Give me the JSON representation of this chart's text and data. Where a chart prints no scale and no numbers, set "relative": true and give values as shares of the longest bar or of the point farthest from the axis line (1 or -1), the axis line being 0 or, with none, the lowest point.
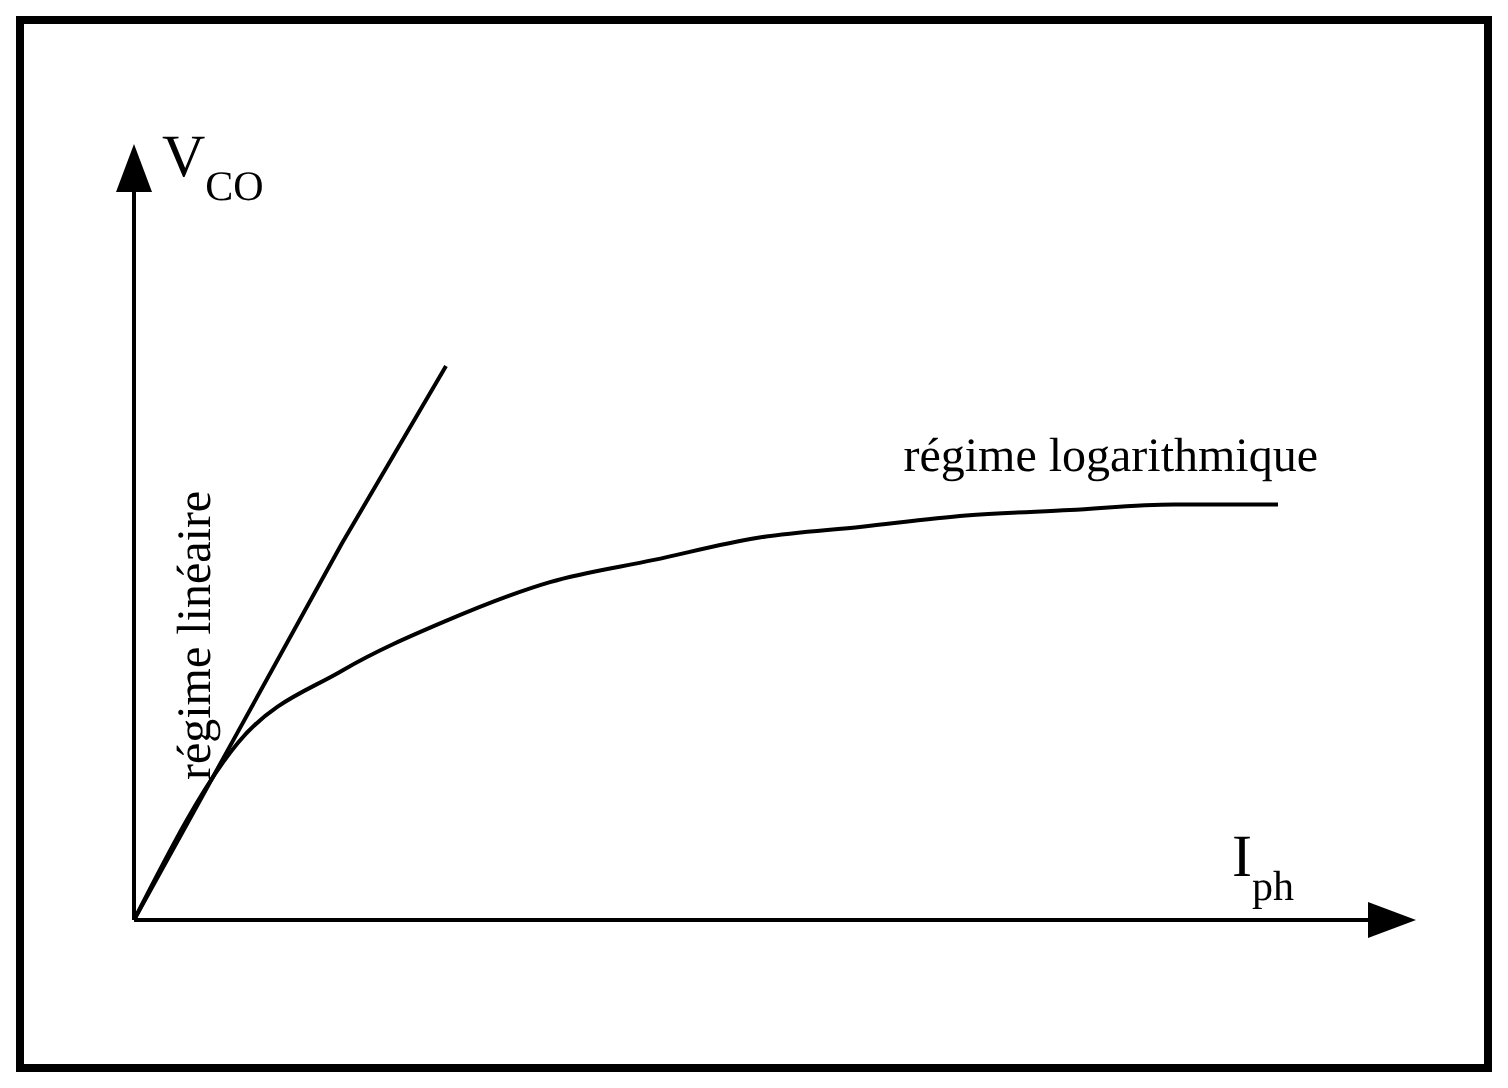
{
  "chart_data": {
    "type": "line",
    "relative": true,
    "xlabel": "I$_{ph}$",
    "ylabel": "V$_{CO}$",
    "categories": [
      null,
      null,
      null,
      null,
      null,
      null,
      null,
      null,
      null,
      null,
      null,
      null
    ],
    "marker": "none",
    "line_style": "solid",
    "series": [
      {
        "name": "régime linéaire",
        "color": "#000000",
        "values": [
          0,
          0.34,
          0.68,
          1.0,
          null,
          null,
          null,
          null,
          null,
          null,
          null,
          null
        ]
      },
      {
        "name": "régime logarithmique",
        "color": "#000000",
        "values": [
          0,
          0.32,
          0.45,
          0.54,
          0.61,
          0.65,
          0.69,
          0.71,
          0.73,
          0.74,
          0.75,
          0.75
        ]
      }
    ]
  }
}
